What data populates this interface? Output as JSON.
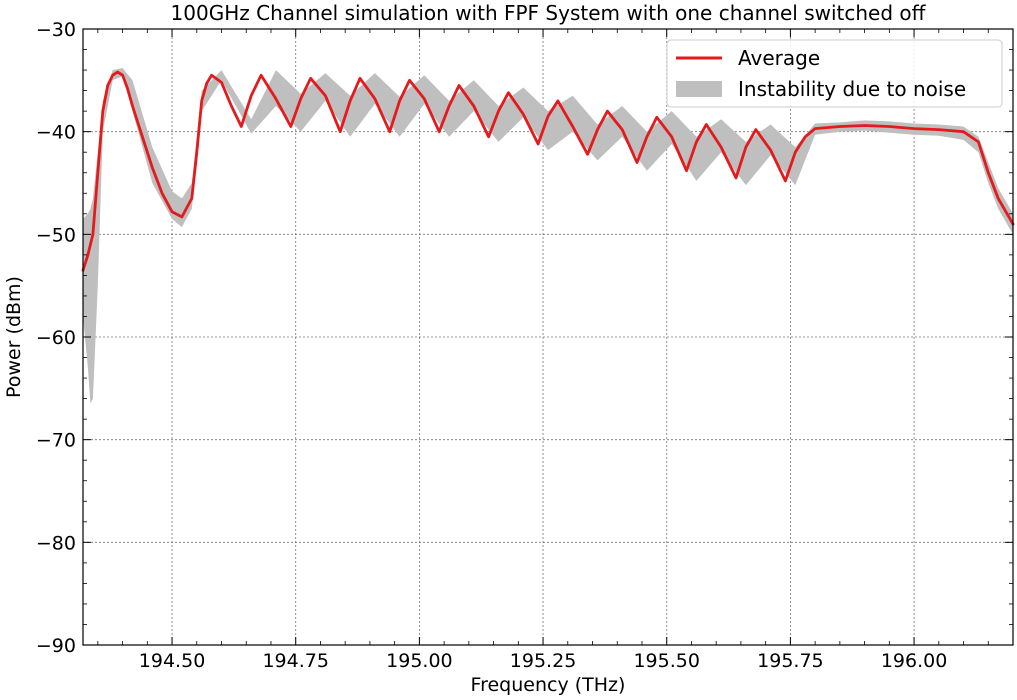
{
  "chart_data": {
    "type": "line",
    "title": "100GHz Channel simulation with FPF System with one channel switched off",
    "xlabel": "Frequency (THz)",
    "ylabel": "Power (dBm)",
    "xlim": [
      194.32,
      196.2
    ],
    "ylim": [
      -90,
      -30
    ],
    "xticks": [
      194.5,
      194.75,
      195.0,
      195.25,
      195.5,
      195.75,
      196.0
    ],
    "xtick_labels": [
      "194.50",
      "194.75",
      "195.00",
      "195.25",
      "195.50",
      "195.75",
      "196.00"
    ],
    "yticks": [
      -90,
      -80,
      -70,
      -60,
      -50,
      -40,
      -30
    ],
    "ytick_labels": [
      "−90",
      "−80",
      "−70",
      "−60",
      "−50",
      "−40",
      "−30"
    ],
    "grid": true,
    "legend_position": "top-right",
    "legend": [
      {
        "label": "Average",
        "kind": "line",
        "color": "#e41a1c"
      },
      {
        "label": "Instability due to noise",
        "kind": "fill",
        "color": "#bfbfbf"
      }
    ],
    "series": [
      {
        "name": "Average",
        "color": "#e41a1c",
        "x": [
          194.32,
          194.33,
          194.34,
          194.35,
          194.36,
          194.37,
          194.38,
          194.39,
          194.4,
          194.41,
          194.42,
          194.44,
          194.46,
          194.48,
          194.5,
          194.52,
          194.54,
          194.55,
          194.56,
          194.57,
          194.58,
          194.6,
          194.62,
          194.64,
          194.66,
          194.68,
          194.71,
          194.74,
          194.76,
          194.78,
          194.81,
          194.84,
          194.86,
          194.88,
          194.91,
          194.94,
          194.96,
          194.98,
          195.01,
          195.04,
          195.06,
          195.08,
          195.11,
          195.14,
          195.16,
          195.18,
          195.21,
          195.24,
          195.26,
          195.28,
          195.31,
          195.34,
          195.36,
          195.38,
          195.41,
          195.44,
          195.46,
          195.48,
          195.51,
          195.54,
          195.56,
          195.58,
          195.61,
          195.64,
          195.66,
          195.68,
          195.71,
          195.74,
          195.76,
          195.78,
          195.8,
          195.85,
          195.9,
          195.95,
          196.0,
          196.05,
          196.1,
          196.13,
          196.15,
          196.17,
          196.2
        ],
        "values": [
          -53.5,
          -52.0,
          -50.0,
          -44.0,
          -38.0,
          -35.5,
          -34.5,
          -34.2,
          -34.5,
          -35.8,
          -37.5,
          -40.5,
          -43.5,
          -46.0,
          -47.8,
          -48.3,
          -46.5,
          -42.0,
          -37.0,
          -35.3,
          -34.5,
          -35.2,
          -37.5,
          -39.5,
          -36.5,
          -34.5,
          -36.8,
          -39.5,
          -36.8,
          -34.8,
          -36.5,
          -40.0,
          -37.0,
          -34.8,
          -36.8,
          -40.0,
          -37.0,
          -35.0,
          -36.8,
          -40.0,
          -37.5,
          -35.5,
          -37.5,
          -40.5,
          -38.0,
          -36.2,
          -38.3,
          -41.2,
          -38.5,
          -37.0,
          -39.5,
          -42.2,
          -39.8,
          -38.0,
          -39.8,
          -43.0,
          -40.5,
          -38.6,
          -40.5,
          -43.8,
          -41.0,
          -39.3,
          -41.5,
          -44.5,
          -41.5,
          -39.8,
          -41.8,
          -44.8,
          -42.0,
          -40.5,
          -39.7,
          -39.5,
          -39.4,
          -39.5,
          -39.7,
          -39.8,
          -40.0,
          -41.0,
          -44.0,
          -46.5,
          -49.0
        ]
      }
    ],
    "noise_band": {
      "name": "Instability due to noise",
      "color": "#bfbfbf",
      "x": [
        194.32,
        194.33,
        194.335,
        194.34,
        194.35,
        194.36,
        194.38,
        194.4,
        194.42,
        194.46,
        194.5,
        194.52,
        194.54,
        194.56,
        194.6,
        194.66,
        194.71,
        194.76,
        194.81,
        194.86,
        194.91,
        194.96,
        195.01,
        195.06,
        195.11,
        195.16,
        195.21,
        195.26,
        195.31,
        195.36,
        195.41,
        195.46,
        195.51,
        195.56,
        195.61,
        195.66,
        195.71,
        195.76,
        195.8,
        195.85,
        195.9,
        195.95,
        196.0,
        196.05,
        196.1,
        196.13,
        196.15,
        196.17,
        196.2
      ],
      "upper": [
        -48.5,
        -48.0,
        -47.5,
        -46.5,
        -42.0,
        -37.0,
        -34.0,
        -33.8,
        -35.0,
        -41.5,
        -45.8,
        -46.5,
        -45.0,
        -36.0,
        -34.0,
        -38.8,
        -34.0,
        -36.3,
        -34.3,
        -36.5,
        -34.3,
        -36.6,
        -34.5,
        -37.0,
        -35.0,
        -37.5,
        -35.7,
        -38.0,
        -36.5,
        -39.3,
        -37.5,
        -40.0,
        -38.0,
        -40.5,
        -38.8,
        -41.0,
        -39.3,
        -41.5,
        -39.2,
        -39.1,
        -38.9,
        -39.0,
        -39.2,
        -39.3,
        -39.5,
        -40.5,
        -43.0,
        -45.5,
        -48.0
      ],
      "lower": [
        -58.0,
        -63.0,
        -66.5,
        -66.0,
        -55.0,
        -40.0,
        -35.0,
        -34.6,
        -38.0,
        -45.0,
        -48.5,
        -49.3,
        -47.5,
        -38.0,
        -35.0,
        -40.2,
        -37.5,
        -40.0,
        -37.0,
        -40.5,
        -37.3,
        -40.5,
        -37.3,
        -40.5,
        -38.0,
        -41.0,
        -38.6,
        -41.8,
        -40.0,
        -42.8,
        -40.5,
        -43.8,
        -41.2,
        -44.8,
        -42.0,
        -45.2,
        -42.3,
        -45.2,
        -40.3,
        -40.0,
        -39.9,
        -40.1,
        -40.3,
        -40.4,
        -40.8,
        -42.0,
        -45.0,
        -47.5,
        -50.0
      ]
    }
  }
}
